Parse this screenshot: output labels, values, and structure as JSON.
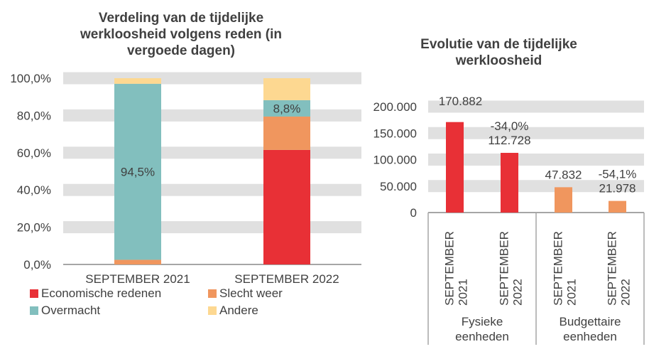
{
  "chart_data": [
    {
      "type": "bar",
      "stacked": true,
      "title": "Verdeling van de tijdelijke werkloosheid volgens reden (in vergoede dagen)",
      "categories": [
        "SEPTEMBER 2021",
        "SEPTEMBER 2022"
      ],
      "ylim": [
        0,
        100
      ],
      "yticks": [
        "0,0%",
        "20,0%",
        "40,0%",
        "60,0%",
        "80,0%",
        "100,0%"
      ],
      "series": [
        {
          "name": "Economische redenen",
          "color": "#E83036",
          "values": [
            0,
            61.5
          ]
        },
        {
          "name": "Slecht weer",
          "color": "#F0965E",
          "values": [
            2.5,
            17.9
          ]
        },
        {
          "name": "Overmacht",
          "color": "#82BFBE",
          "values": [
            94.5,
            8.8
          ],
          "labels": [
            "94,5%",
            "8,8%"
          ]
        },
        {
          "name": "Andere",
          "color": "#FDD891",
          "values": [
            3.0,
            11.8
          ]
        }
      ],
      "legend": "bottom"
    },
    {
      "type": "bar",
      "title": "Evolutie van de tijdelijke werkloosheid",
      "groups": [
        {
          "name": "Fysieke eenheden",
          "color": "#E83036"
        },
        {
          "name": "Budgettaire eenheden",
          "color": "#F0965E"
        }
      ],
      "categories": [
        [
          "SEPTEMBER",
          "2021"
        ],
        [
          "SEPTEMBER",
          "2022"
        ],
        [
          "SEPTEMBER",
          "2021"
        ],
        [
          "SEPTEMBER",
          "2022"
        ]
      ],
      "values": [
        170882,
        112728,
        47832,
        21978
      ],
      "labels": [
        "170.882",
        "112.728",
        "47.832",
        "21.978"
      ],
      "changes": [
        "",
        "-34,0%",
        "",
        "-54,1%"
      ],
      "ylim": [
        0,
        200000
      ],
      "yticks": [
        "0",
        "50.000",
        "100.000",
        "150.000",
        "200.000"
      ]
    }
  ]
}
